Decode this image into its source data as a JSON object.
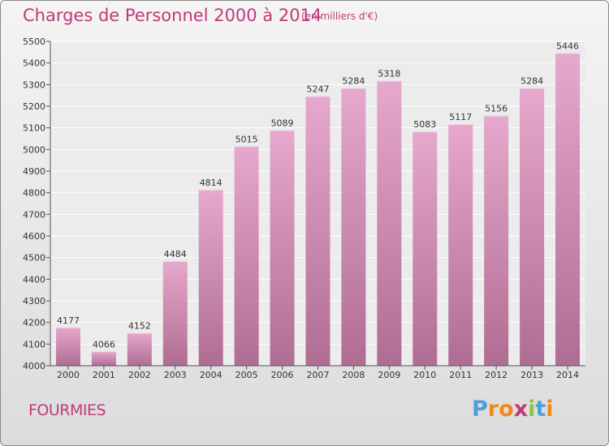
{
  "header": {
    "title": "Charges de Personnel 2000 à 2014",
    "unit": "(en milliers d'€)"
  },
  "footer": {
    "city": "FOURMIES",
    "logo_text": "Proxiti"
  },
  "colors": {
    "title": "#c03a7a",
    "bar_top": "#e6a8cc",
    "bar_bottom": "#b06d93",
    "logo_letters": [
      "#4da0d8",
      "#f08a1c",
      "#f08a1c",
      "#c03a7a",
      "#8dc63f",
      "#4da0d8",
      "#f08a1c"
    ]
  },
  "chart_data": {
    "type": "bar",
    "title": "Charges de Personnel 2000 à 2014",
    "subtitle": "(en milliers d'€)",
    "categories": [
      "2000",
      "2001",
      "2002",
      "2003",
      "2004",
      "2005",
      "2006",
      "2007",
      "2008",
      "2009",
      "2010",
      "2011",
      "2012",
      "2013",
      "2014"
    ],
    "values": [
      4177,
      4066,
      4152,
      4484,
      4814,
      5015,
      5089,
      5247,
      5284,
      5318,
      5083,
      5117,
      5156,
      5284,
      5446
    ],
    "ylim": [
      4000,
      5500
    ],
    "yticks": [
      4000,
      4100,
      4200,
      4300,
      4400,
      4500,
      4600,
      4700,
      4800,
      4900,
      5000,
      5100,
      5200,
      5300,
      5400,
      5500
    ],
    "grid": true,
    "data_labels": true
  }
}
